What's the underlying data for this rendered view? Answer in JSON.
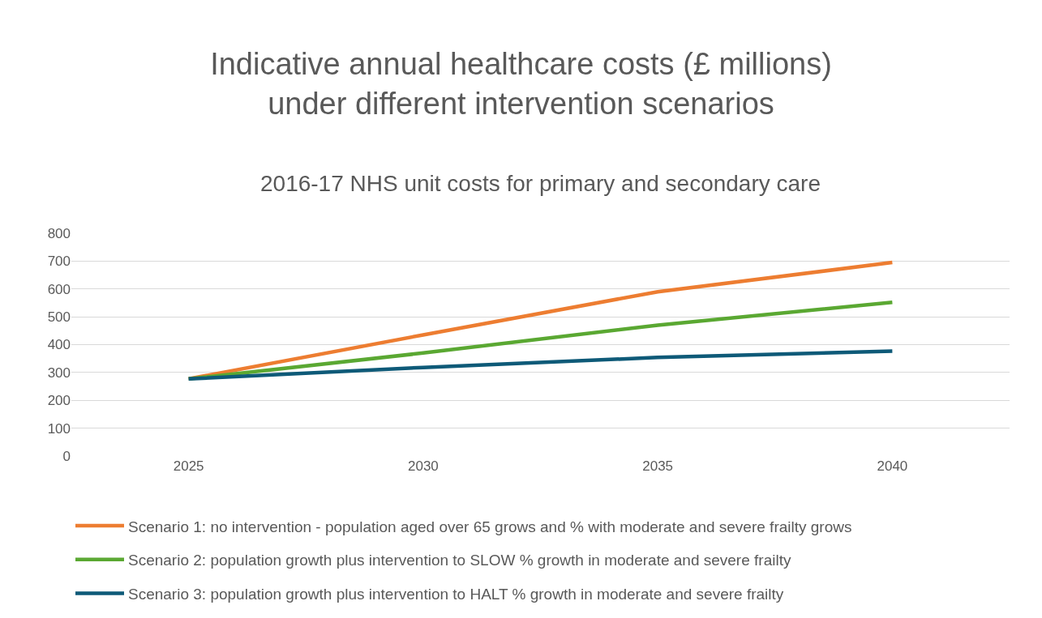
{
  "chart_data": {
    "type": "line",
    "title": "Indicative annual healthcare costs (£ millions)\nunder different intervention scenarios",
    "subtitle": "2016-17 NHS unit costs for primary and secondary care",
    "categories": [
      "2025",
      "2030",
      "2035",
      "2040"
    ],
    "series": [
      {
        "name": "Scenario 1: no intervention - population aged over 65 grows and % with moderate and severe frailty grows",
        "color": "#ed7d31",
        "values": [
          277,
          435,
          590,
          695
        ]
      },
      {
        "name": "Scenario 2: population growth plus intervention to SLOW % growth in moderate and severe frailty",
        "color": "#5aa832",
        "values": [
          277,
          370,
          470,
          552
        ]
      },
      {
        "name": "Scenario 3: population growth plus intervention to HALT % growth in moderate and severe frailty",
        "color": "#0e5a78",
        "values": [
          277,
          318,
          354,
          377
        ]
      }
    ],
    "ylim": [
      0,
      800
    ],
    "yticks": [
      0,
      100,
      200,
      300,
      400,
      500,
      600,
      700,
      800
    ],
    "grid": "y",
    "legend": "bottom",
    "marker": "none",
    "line_style": "solid"
  }
}
